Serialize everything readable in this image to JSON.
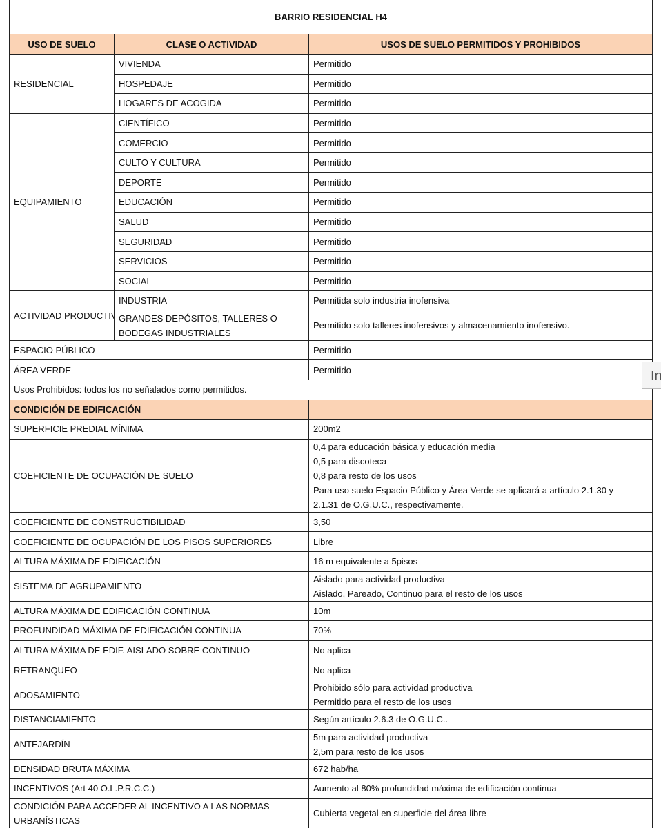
{
  "title": "BARRIO RESIDENCIAL H4",
  "header": [
    "USO DE SUELO",
    "CLASE O ACTIVIDAD",
    "USOS DE SUELO PERMITIDOS Y PROHIBIDOS"
  ],
  "land_use": [
    {
      "use": "RESIDENCIAL",
      "rows": [
        {
          "activity": [
            "VIVIENDA"
          ],
          "status": "Permitido"
        },
        {
          "activity": [
            "HOSPEDAJE"
          ],
          "status": "Permitido"
        },
        {
          "activity": [
            "HOGARES DE ACOGIDA"
          ],
          "status": "Permitido"
        }
      ]
    },
    {
      "use": "EQUIPAMIENTO",
      "rows": [
        {
          "activity": [
            "CIENTÍFICO"
          ],
          "status": "Permitido"
        },
        {
          "activity": [
            "COMERCIO"
          ],
          "status": "Permitido"
        },
        {
          "activity": [
            "CULTO Y CULTURA"
          ],
          "status": "Permitido"
        },
        {
          "activity": [
            "DEPORTE"
          ],
          "status": "Permitido"
        },
        {
          "activity": [
            "EDUCACIÓN"
          ],
          "status": "Permitido"
        },
        {
          "activity": [
            "SALUD"
          ],
          "status": "Permitido"
        },
        {
          "activity": [
            "SEGURIDAD"
          ],
          "status": "Permitido"
        },
        {
          "activity": [
            "SERVICIOS"
          ],
          "status": "Permitido"
        },
        {
          "activity": [
            "SOCIAL"
          ],
          "status": "Permitido"
        }
      ]
    },
    {
      "use": "ACTIVIDAD PRODUCTIVA",
      "rows": [
        {
          "activity": [
            "INDUSTRIA"
          ],
          "status": "Permitida solo industria inofensiva"
        },
        {
          "activity": [
            "GRANDES DEPÓSITOS, TALLERES O",
            "BODEGAS INDUSTRIALES"
          ],
          "status": "Permitido solo talleres inofensivos y almacenamiento inofensivo."
        }
      ]
    }
  ],
  "other_uses": [
    {
      "use": "ESPACIO PÚBLICO",
      "status": "Permitido"
    },
    {
      "use": "ÁREA VERDE",
      "status": "Permitido"
    }
  ],
  "note": "Usos Prohibidos: todos los no señalados como permitidos.",
  "conditions_header": "CONDICIÓN DE EDIFICACIÓN",
  "conditions": [
    {
      "label": [
        "SUPERFICIE PREDIAL MÍNIMA"
      ],
      "value": [
        "200m2"
      ]
    },
    {
      "label": [
        "COEFICIENTE DE OCUPACIÓN DE SUELO"
      ],
      "value": [
        "0,4 para educación básica y educación media",
        "0,5 para discoteca",
        "0,8 para resto de los usos",
        "Para uso suelo Espacio Público y Área Verde se aplicará a artículo 2.1.30 y",
        "2.1.31 de O.G.U.C., respectivamente."
      ]
    },
    {
      "label": [
        "COEFICIENTE DE CONSTRUCTIBILIDAD"
      ],
      "value": [
        "3,50"
      ]
    },
    {
      "label": [
        "COEFICIENTE DE OCUPACIÓN DE LOS PISOS SUPERIORES"
      ],
      "value": [
        "Libre"
      ]
    },
    {
      "label": [
        "ALTURA MÁXIMA DE EDIFICACIÓN"
      ],
      "value": [
        "16 m equivalente a 5pisos"
      ]
    },
    {
      "label": [
        "SISTEMA DE AGRUPAMIENTO"
      ],
      "value": [
        "Aislado para actividad productiva",
        "Aislado, Pareado, Continuo para el resto de los usos"
      ]
    },
    {
      "label": [
        "ALTURA MÁXIMA DE EDIFICACIÓN CONTINUA"
      ],
      "value": [
        "10m"
      ]
    },
    {
      "label": [
        "PROFUNDIDAD MÁXIMA DE EDIFICACIÓN CONTINUA"
      ],
      "value": [
        "70%"
      ]
    },
    {
      "label": [
        "ALTURA MÁXIMA DE EDIF. AISLADO SOBRE CONTINUO"
      ],
      "value": [
        "No aplica"
      ]
    },
    {
      "label": [
        "RETRANQUEO"
      ],
      "value": [
        "No aplica"
      ]
    },
    {
      "label": [
        "ADOSAMIENTO"
      ],
      "value": [
        "Prohibido sólo para actividad productiva",
        "Permitido para el resto de los usos"
      ]
    },
    {
      "label": [
        "DISTANCIAMIENTO"
      ],
      "value": [
        "Según artículo 2.6.3 de O.G.U.C.."
      ]
    },
    {
      "label": [
        "ANTEJARDÍN"
      ],
      "value": [
        "5m para actividad productiva",
        "2,5m para resto de los usos"
      ]
    },
    {
      "label": [
        "DENSIDAD BRUTA MÁXIMA"
      ],
      "value": [
        "672 hab/ha"
      ]
    },
    {
      "label": [
        "INCENTIVOS (Art 40 O.L.P.R.C.C.)"
      ],
      "value": [
        "Aumento al 80% profundidad máxima de edificación continua"
      ]
    },
    {
      "label": [
        "CONDICIÓN PARA ACCEDER AL INCENTIVO A LAS NORMAS",
        "URBANÍSTICAS"
      ],
      "value": [
        "Cubierta vegetal en superficie del área libre"
      ]
    }
  ],
  "side_tab": "In"
}
